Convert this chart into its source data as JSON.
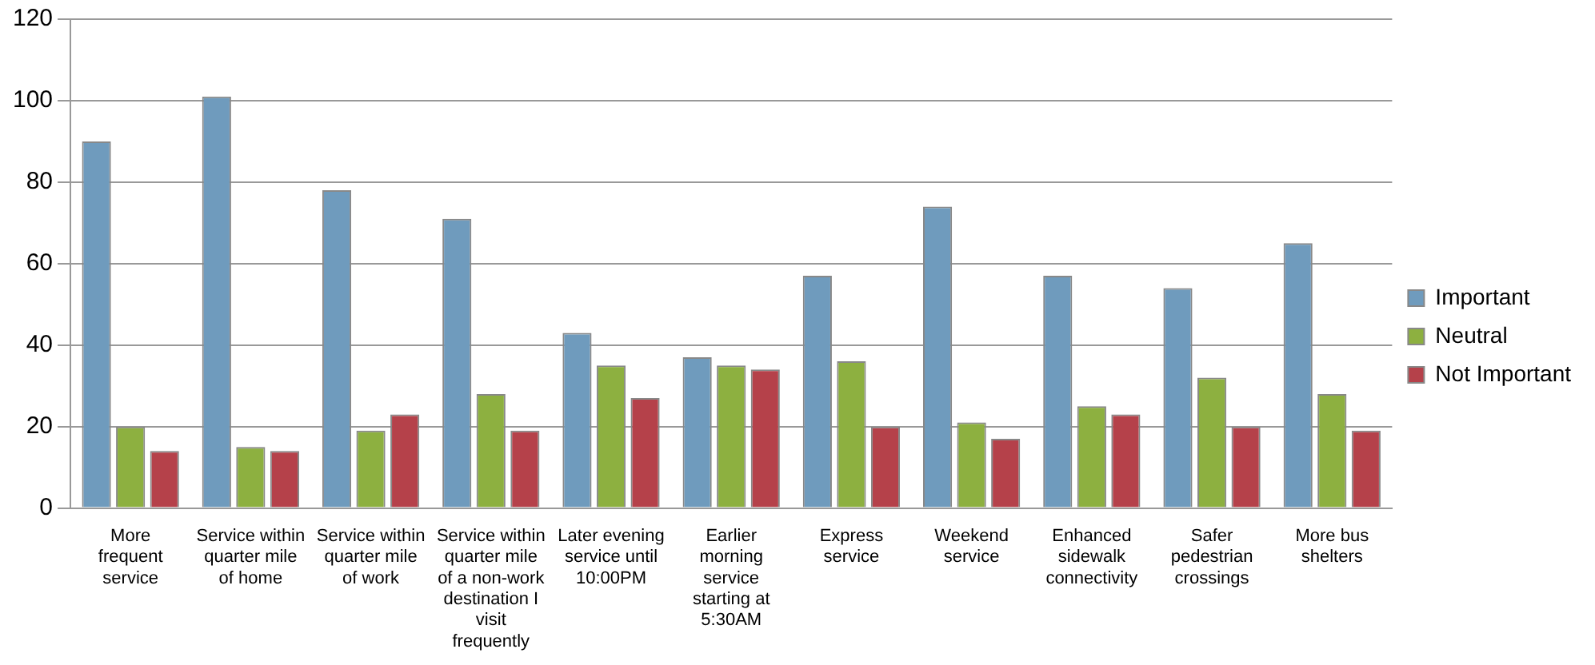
{
  "chart_data": {
    "type": "bar",
    "categories": [
      "More frequent service",
      "Service within quarter mile of home",
      "Service within quarter mile of work",
      "Service within quarter mile of a non-work destination I visit frequently",
      "Later evening service until 10:00PM",
      "Earlier morning service starting at 5:30AM",
      "Express service",
      "Weekend service",
      "Enhanced sidewalk connectivity",
      "Safer pedestrian crossings",
      "More bus shelters"
    ],
    "series": [
      {
        "name": "Important",
        "color": "#6f9bbd",
        "values": [
          90,
          101,
          78,
          71,
          43,
          37,
          57,
          74,
          57,
          54,
          65
        ]
      },
      {
        "name": "Neutral",
        "color": "#8db040",
        "values": [
          20,
          15,
          19,
          28,
          35,
          35,
          36,
          21,
          25,
          32,
          28
        ]
      },
      {
        "name": "Not Important",
        "color": "#b5414a",
        "values": [
          14,
          14,
          23,
          19,
          27,
          34,
          20,
          17,
          23,
          20,
          19
        ]
      }
    ],
    "ylim": [
      0,
      120
    ],
    "yticks": [
      0,
      20,
      40,
      60,
      80,
      100,
      120
    ],
    "grid": "y",
    "legend": "right"
  }
}
